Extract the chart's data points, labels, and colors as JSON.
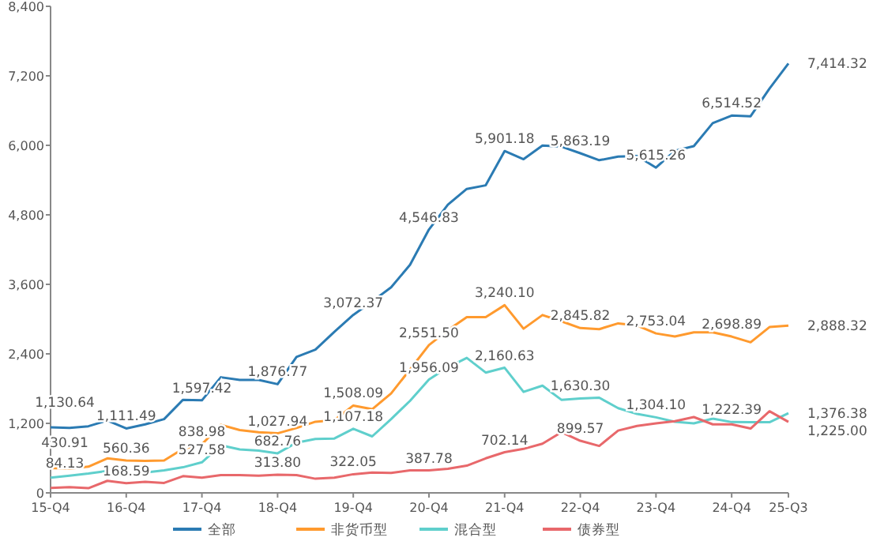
{
  "chart_data": {
    "type": "line",
    "categories": [
      "15-Q4",
      null,
      null,
      null,
      "16-Q4",
      null,
      null,
      null,
      "17-Q4",
      null,
      null,
      null,
      "18-Q4",
      null,
      null,
      null,
      "19-Q4",
      null,
      null,
      null,
      "20-Q4",
      null,
      null,
      null,
      "21-Q4",
      null,
      null,
      null,
      "22-Q4",
      null,
      null,
      null,
      "23-Q4",
      null,
      null,
      null,
      "24-Q4",
      null,
      null,
      "25-Q3"
    ],
    "ylim": [
      0,
      8400
    ],
    "yticks": [
      0,
      {
        "value": 1200,
        "label": "1,200"
      },
      {
        "value": 2400,
        "label": "2,400"
      },
      {
        "value": 3600,
        "label": "3,600"
      },
      {
        "value": 4800,
        "label": "4,800"
      },
      {
        "value": 6000,
        "label": "6,000"
      },
      {
        "value": 7200,
        "label": "7,200"
      },
      {
        "value": 8400,
        "label": "8,400"
      }
    ],
    "grid": false,
    "legend": "bottom",
    "marker": "none",
    "line_style": "solid",
    "series": [
      {
        "name": "全部",
        "color": "#2b7bb3",
        "values": [
          1130.64,
          1120,
          1150,
          1250,
          1111.49,
          1183,
          1273,
          1607,
          1597.42,
          1996,
          1950,
          1950,
          1876.77,
          2348,
          2474,
          2781,
          3072.37,
          3305,
          3549,
          3937,
          4546.83,
          4976,
          5247,
          5310,
          5901.18,
          5761,
          5996,
          5978,
          5863.19,
          5743,
          5806,
          5815,
          5615.26,
          5906,
          5987,
          6384,
          6514.52,
          6502,
          6980,
          7414.32
        ],
        "value_labels": [
          "1,130.64",
          null,
          null,
          null,
          "1,111.49",
          null,
          null,
          null,
          "1,597.42",
          null,
          null,
          null,
          "1,876.77",
          null,
          null,
          null,
          "3,072.37",
          null,
          null,
          null,
          "4,546.83",
          null,
          null,
          null,
          "5,901.18",
          null,
          null,
          null,
          "5,863.19",
          null,
          null,
          null,
          "5,615.26",
          null,
          null,
          null,
          "6,514.52",
          null,
          null,
          "7,414.32"
        ]
      },
      {
        "name": "非货币型",
        "color": "#ff9a2e",
        "values": [
          430.91,
          415,
          452,
          596,
          560.36,
          551,
          560,
          759,
          838.98,
          1174,
          1084,
          1047,
          1027.94,
          1120,
          1228,
          1255,
          1508.09,
          1445,
          1716,
          2131,
          2551.5,
          2808,
          3034,
          3034,
          3240.1,
          2835,
          3070,
          2962,
          2845.82,
          2826,
          2926,
          2890,
          2753.04,
          2700,
          2772,
          2772,
          2698.89,
          2600,
          2862,
          2888.32
        ],
        "value_labels": [
          "430.91",
          null,
          null,
          null,
          "560.36",
          null,
          null,
          null,
          "838.98",
          null,
          null,
          null,
          "1,027.94",
          null,
          null,
          null,
          "1,508.09",
          null,
          null,
          null,
          "2,551.50",
          null,
          null,
          null,
          "3,240.10",
          null,
          null,
          null,
          "2,845.82",
          null,
          null,
          null,
          "2,753.04",
          null,
          null,
          null,
          "2,698.89",
          null,
          null,
          "2,888.32"
        ]
      },
      {
        "name": "混合型",
        "color": "#5fcfcc",
        "values": [
          262,
          298,
          334,
          379,
          null,
          352,
          388,
          442,
          527.58,
          822,
          750,
          731,
          682.76,
          867,
          930,
          939,
          1107.18,
          975,
          1273,
          1589,
          1956.09,
          2167,
          2330,
          2077,
          2160.63,
          1743,
          1851,
          1607,
          1630.3,
          1643,
          1463,
          1364,
          1304.1,
          1228,
          1201,
          1282,
          1222.39,
          1219,
          1219,
          1376.38
        ],
        "value_labels": [
          null,
          null,
          null,
          null,
          null,
          null,
          null,
          null,
          "527.58",
          null,
          null,
          null,
          "682.76",
          null,
          null,
          null,
          "1,107.18",
          null,
          null,
          null,
          "1,956.09",
          null,
          null,
          null,
          "2,160.63",
          null,
          null,
          null,
          "1,630.30",
          null,
          null,
          null,
          "1,304.10",
          null,
          null,
          null,
          "1,222.39",
          null,
          null,
          "1,376.38"
        ]
      },
      {
        "name": "债券型",
        "color": "#e8686b",
        "values": [
          84.13,
          99,
          81,
          208,
          168.59,
          190,
          172,
          289,
          262,
          307,
          307,
          298,
          313.8,
          307,
          244,
          262,
          322.05,
          352,
          343,
          388,
          387.78,
          415,
          470,
          596,
          702.14,
          759,
          849,
          1047,
          899.57,
          810,
          1075,
          1156,
          1201,
          1237,
          1309,
          1183,
          1183,
          1111,
          1409,
          1225
        ],
        "value_labels": [
          "84.13",
          null,
          null,
          null,
          "168.59",
          null,
          null,
          null,
          null,
          null,
          null,
          null,
          "313.80",
          null,
          null,
          null,
          "322.05",
          null,
          null,
          null,
          "387.78",
          null,
          null,
          null,
          "702.14",
          null,
          null,
          null,
          "899.57",
          null,
          null,
          null,
          null,
          null,
          null,
          null,
          null,
          null,
          null,
          "1,225.00"
        ]
      }
    ]
  }
}
